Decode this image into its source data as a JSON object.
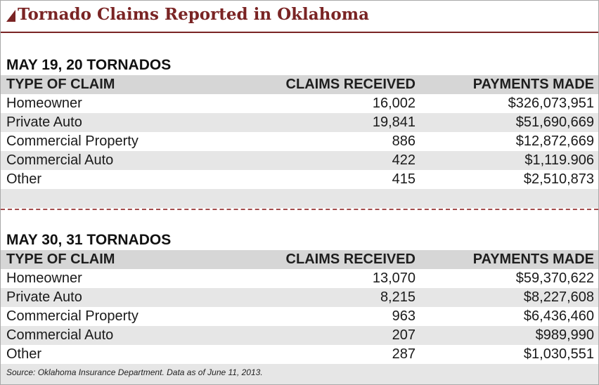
{
  "title": "Tornado Claims Reported in Oklahoma",
  "sections": [
    {
      "heading": "MAY 19, 20 TORNADOS",
      "columns": [
        "TYPE OF CLAIM",
        "CLAIMS RECEIVED",
        "PAYMENTS MADE"
      ],
      "rows": [
        {
          "type": "Homeowner",
          "claims": "16,002",
          "payments": "$326,073,951"
        },
        {
          "type": "Private Auto",
          "claims": "19,841",
          "payments": "$51,690,669"
        },
        {
          "type": "Commercial Property",
          "claims": "886",
          "payments": "$12,872,669"
        },
        {
          "type": "Commercial Auto",
          "claims": "422",
          "payments": "$1,119.906"
        },
        {
          "type": "Other",
          "claims": "415",
          "payments": "$2,510,873"
        }
      ]
    },
    {
      "heading": "MAY 30, 31 TORNADOS",
      "columns": [
        "TYPE OF CLAIM",
        "CLAIMS RECEIVED",
        "PAYMENTS MADE"
      ],
      "rows": [
        {
          "type": "Homeowner",
          "claims": "13,070",
          "payments": "$59,370,622"
        },
        {
          "type": "Private Auto",
          "claims": "8,215",
          "payments": "$8,227,608"
        },
        {
          "type": "Commercial Property",
          "claims": "963",
          "payments": "$6,436,460"
        },
        {
          "type": "Commercial Auto",
          "claims": "207",
          "payments": "$989,990"
        },
        {
          "type": "Other",
          "claims": "287",
          "payments": "$1,030,551"
        }
      ]
    }
  ],
  "source": "Source: Oklahoma Insurance Department. Data as of June 11, 2013.",
  "colors": {
    "accent": "#7a2424",
    "header_bg": "#d6d6d6",
    "stripe_bg": "#e6e6e6"
  }
}
